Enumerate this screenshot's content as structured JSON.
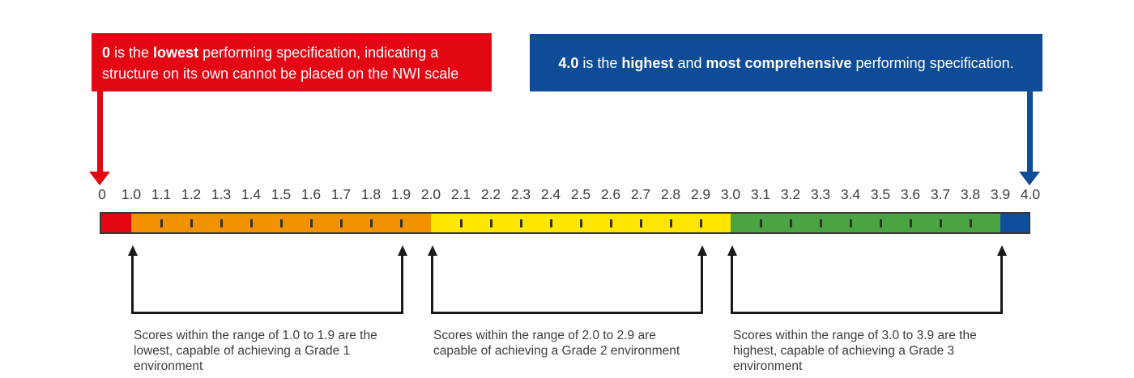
{
  "colors": {
    "red": "#e30613",
    "orange": "#f39200",
    "yellow": "#ffe600",
    "green": "#4aa441",
    "bar_blue": "#0d4f9e",
    "box_blue": "#0f4c97",
    "ink": "#3c3c3b",
    "bracket": "#1a1a1a"
  },
  "callouts": {
    "left": {
      "parts": [
        {
          "text": "0",
          "bold": true
        },
        {
          "text": " is the ",
          "bold": false
        },
        {
          "text": "lowest",
          "bold": true
        },
        {
          "text": " performing specification, indicating a structure on its own cannot be placed on the NWI scale",
          "bold": false
        }
      ]
    },
    "right": {
      "parts": [
        {
          "text": "4.0",
          "bold": true
        },
        {
          "text": " is the ",
          "bold": false
        },
        {
          "text": "highest",
          "bold": true
        },
        {
          "text": " and ",
          "bold": false
        },
        {
          "text": "most comprehensive",
          "bold": true
        },
        {
          "text": " performing specification.",
          "bold": false
        }
      ]
    }
  },
  "scale": {
    "labels": [
      "0",
      "1.0",
      "1.1",
      "1.2",
      "1.3",
      "1.4",
      "1.5",
      "1.6",
      "1.7",
      "1.8",
      "1.9",
      "2.0",
      "2.1",
      "2.2",
      "2.3",
      "2.4",
      "2.5",
      "2.6",
      "2.7",
      "2.8",
      "2.9",
      "3.0",
      "3.1",
      "3.2",
      "3.3",
      "3.4",
      "3.5",
      "3.6",
      "3.7",
      "3.8",
      "3.9",
      "4.0"
    ],
    "segments": [
      {
        "name": "red",
        "from": 0,
        "to": 1.0,
        "color": "#e30613"
      },
      {
        "name": "orange",
        "from": 1.0,
        "to": 2.0,
        "color": "#f39200"
      },
      {
        "name": "yellow",
        "from": 2.0,
        "to": 3.0,
        "color": "#ffe600"
      },
      {
        "name": "green",
        "from": 3.0,
        "to": 3.9,
        "color": "#4aa441"
      },
      {
        "name": "blue",
        "from": 3.9,
        "to": 4.0,
        "color": "#0d4f9e"
      }
    ],
    "ticks": [
      1.1,
      1.2,
      1.3,
      1.4,
      1.5,
      1.6,
      1.7,
      1.8,
      1.9,
      2.1,
      2.2,
      2.3,
      2.4,
      2.5,
      2.6,
      2.7,
      2.8,
      2.9,
      3.1,
      3.2,
      3.3,
      3.4,
      3.5,
      3.6,
      3.7,
      3.8
    ]
  },
  "annotations": [
    {
      "from": 1.0,
      "to": 1.9,
      "lines": [
        "Scores within the range of 1.0 to 1.9 are the",
        "lowest, capable of achieving a Grade 1",
        "environment"
      ]
    },
    {
      "from": 2.0,
      "to": 2.9,
      "lines": [
        "Scores within the range of 2.0 to 2.9 are",
        "capable of achieving a Grade 2 environment"
      ]
    },
    {
      "from": 3.0,
      "to": 3.9,
      "lines": [
        "Scores within the range of 3.0 to 3.9 are the",
        "highest, capable of achieving a Grade 3",
        "environment"
      ]
    }
  ]
}
